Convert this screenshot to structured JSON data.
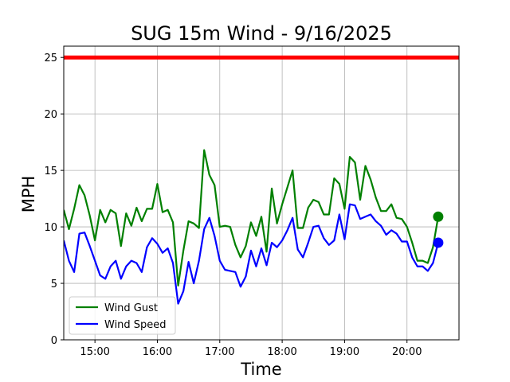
{
  "chart_data": {
    "type": "line",
    "title": "SUG 15m Wind - 9/16/2025",
    "xlabel": "Time",
    "ylabel": "MPH",
    "x_range": [
      "14:30",
      "20:50"
    ],
    "ylim": [
      0,
      26
    ],
    "x_ticks": [
      "15:00",
      "16:00",
      "17:00",
      "18:00",
      "19:00",
      "20:00"
    ],
    "y_ticks": [
      0,
      5,
      10,
      15,
      20,
      25
    ],
    "grid": true,
    "legend_position": "lower-left",
    "threshold": {
      "value": 25,
      "color": "#ff0000"
    },
    "series": [
      {
        "name": "Wind Gust",
        "color": "#008000",
        "x": [
          "14:30",
          "14:35",
          "14:40",
          "14:45",
          "14:50",
          "14:55",
          "15:00",
          "15:05",
          "15:10",
          "15:15",
          "15:20",
          "15:25",
          "15:30",
          "15:35",
          "15:40",
          "15:45",
          "15:50",
          "15:55",
          "16:00",
          "16:05",
          "16:10",
          "16:15",
          "16:20",
          "16:25",
          "16:30",
          "16:35",
          "16:40",
          "16:45",
          "16:50",
          "16:55",
          "17:00",
          "17:05",
          "17:10",
          "17:15",
          "17:20",
          "17:25",
          "17:30",
          "17:35",
          "17:40",
          "17:45",
          "17:50",
          "17:55",
          "18:00",
          "18:05",
          "18:10",
          "18:15",
          "18:20",
          "18:25",
          "18:30",
          "18:35",
          "18:40",
          "18:45",
          "18:50",
          "18:55",
          "19:00",
          "19:05",
          "19:10",
          "19:15",
          "19:20",
          "19:25",
          "19:30",
          "19:35",
          "19:40",
          "19:45",
          "19:50",
          "19:55",
          "20:00",
          "20:05",
          "20:10",
          "20:15",
          "20:20",
          "20:25",
          "20:30"
        ],
        "values": [
          11.5,
          9.8,
          11.6,
          13.7,
          12.8,
          11.0,
          8.8,
          11.5,
          10.4,
          11.5,
          11.2,
          8.3,
          11.2,
          10.1,
          11.7,
          10.5,
          11.6,
          11.6,
          13.8,
          11.3,
          11.5,
          10.4,
          4.8,
          7.9,
          10.5,
          10.3,
          9.9,
          16.8,
          14.6,
          13.7,
          10.0,
          10.1,
          10.0,
          8.4,
          7.3,
          8.3,
          10.4,
          9.2,
          10.9,
          7.8,
          13.4,
          10.3,
          12.0,
          13.5,
          15.0,
          9.9,
          9.9,
          11.7,
          12.4,
          12.2,
          11.1,
          11.1,
          14.3,
          13.8,
          11.6,
          16.2,
          15.7,
          12.4,
          15.4,
          14.2,
          12.6,
          11.4,
          11.4,
          12.0,
          10.8,
          10.7,
          10.0,
          8.6,
          7.0,
          7.0,
          6.8,
          8.2,
          10.9
        ]
      },
      {
        "name": "Wind Speed",
        "color": "#0000ff",
        "x": [
          "14:30",
          "14:35",
          "14:40",
          "14:45",
          "14:50",
          "14:55",
          "15:00",
          "15:05",
          "15:10",
          "15:15",
          "15:20",
          "15:25",
          "15:30",
          "15:35",
          "15:40",
          "15:45",
          "15:50",
          "15:55",
          "16:00",
          "16:05",
          "16:10",
          "16:15",
          "16:20",
          "16:25",
          "16:30",
          "16:35",
          "16:40",
          "16:45",
          "16:50",
          "16:55",
          "17:00",
          "17:05",
          "17:10",
          "17:15",
          "17:20",
          "17:25",
          "17:30",
          "17:35",
          "17:40",
          "17:45",
          "17:50",
          "17:55",
          "18:00",
          "18:05",
          "18:10",
          "18:15",
          "18:20",
          "18:25",
          "18:30",
          "18:35",
          "18:40",
          "18:45",
          "18:50",
          "18:55",
          "19:00",
          "19:05",
          "19:10",
          "19:15",
          "19:20",
          "19:25",
          "19:30",
          "19:35",
          "19:40",
          "19:45",
          "19:50",
          "19:55",
          "20:00",
          "20:05",
          "20:10",
          "20:15",
          "20:20",
          "20:25",
          "20:30"
        ],
        "values": [
          8.8,
          7.0,
          6.0,
          9.4,
          9.5,
          8.3,
          7.0,
          5.7,
          5.4,
          6.5,
          7.0,
          5.4,
          6.5,
          7.0,
          6.8,
          6.0,
          8.2,
          9.0,
          8.5,
          7.7,
          8.1,
          6.8,
          3.2,
          4.3,
          6.9,
          5.0,
          7.0,
          9.8,
          10.8,
          9.2,
          7.0,
          6.2,
          6.1,
          6.0,
          4.7,
          5.6,
          7.9,
          6.5,
          8.1,
          6.6,
          8.6,
          8.2,
          8.8,
          9.7,
          10.8,
          8.0,
          7.3,
          8.6,
          10.0,
          10.1,
          9.0,
          8.4,
          8.8,
          11.1,
          8.9,
          12.0,
          11.9,
          10.7,
          10.9,
          11.1,
          10.5,
          10.1,
          9.3,
          9.7,
          9.4,
          8.7,
          8.7,
          7.3,
          6.5,
          6.5,
          6.1,
          6.8,
          8.6
        ]
      }
    ],
    "last_points": [
      {
        "series": "Wind Gust",
        "x": "20:30",
        "y": 10.9,
        "color": "#008000"
      },
      {
        "series": "Wind Speed",
        "x": "20:30",
        "y": 8.6,
        "color": "#0000ff"
      }
    ]
  }
}
